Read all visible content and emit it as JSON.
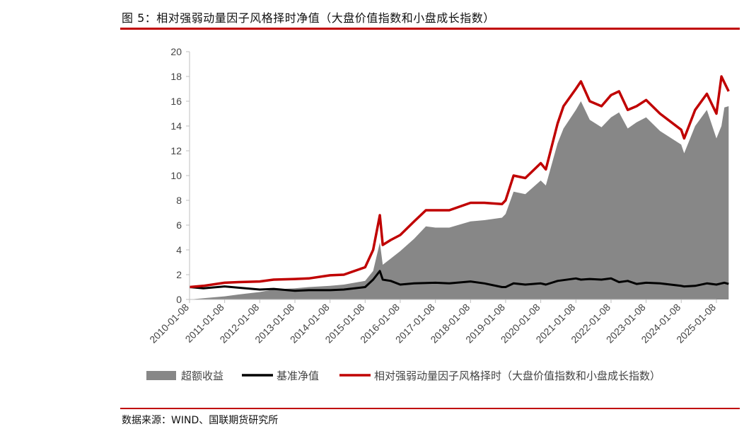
{
  "figure": {
    "title": "图 5：相对强弱动量因子风格择时净值（大盘价值指数和小盘成长指数）",
    "source": "数据来源：WIND、国联期货研究所"
  },
  "colors": {
    "accent_rule": "#c00000",
    "excess_fill": "#878787",
    "benchmark_line": "#000000",
    "strategy_line": "#c00000"
  },
  "chart_data": {
    "type": "area",
    "x_type": "date",
    "ylim": [
      0,
      20
    ],
    "yticks": [
      "0",
      "2",
      "4",
      "6",
      "8",
      "10",
      "12",
      "14",
      "16",
      "18",
      "20"
    ],
    "xticks": [
      "2010-01-08",
      "2011-01-08",
      "2012-01-08",
      "2013-01-08",
      "2014-01-08",
      "2015-01-08",
      "2016-01-08",
      "2017-01-08",
      "2018-01-08",
      "2019-01-08",
      "2020-01-08",
      "2021-01-08",
      "2022-01-08",
      "2023-01-08",
      "2024-01-08",
      "2025-01-08"
    ],
    "grid": false,
    "legend_position": "bottom",
    "series": [
      {
        "name": "超额收益",
        "kind": "area",
        "color": "#878787",
        "points": [
          [
            "2010-01-08",
            0.0
          ],
          [
            "2010-06-01",
            0.1
          ],
          [
            "2011-01-08",
            0.25
          ],
          [
            "2011-06-01",
            0.4
          ],
          [
            "2012-01-08",
            0.6
          ],
          [
            "2012-06-01",
            0.8
          ],
          [
            "2013-01-08",
            0.9
          ],
          [
            "2013-06-01",
            1.0
          ],
          [
            "2014-01-08",
            1.1
          ],
          [
            "2014-06-01",
            1.2
          ],
          [
            "2015-01-08",
            1.5
          ],
          [
            "2015-04-01",
            2.3
          ],
          [
            "2015-06-10",
            4.6
          ],
          [
            "2015-07-10",
            2.8
          ],
          [
            "2015-10-01",
            3.3
          ],
          [
            "2016-01-08",
            3.9
          ],
          [
            "2016-06-01",
            4.9
          ],
          [
            "2016-10-01",
            5.9
          ],
          [
            "2017-01-08",
            5.8
          ],
          [
            "2017-06-01",
            5.8
          ],
          [
            "2018-01-08",
            6.3
          ],
          [
            "2018-06-01",
            6.4
          ],
          [
            "2018-12-01",
            6.6
          ],
          [
            "2019-01-08",
            6.9
          ],
          [
            "2019-04-01",
            8.7
          ],
          [
            "2019-08-01",
            8.5
          ],
          [
            "2020-01-08",
            9.6
          ],
          [
            "2020-03-01",
            9.2
          ],
          [
            "2020-07-01",
            12.6
          ],
          [
            "2020-09-01",
            13.8
          ],
          [
            "2021-01-08",
            15.3
          ],
          [
            "2021-03-01",
            16.0
          ],
          [
            "2021-06-01",
            14.5
          ],
          [
            "2021-10-01",
            13.9
          ],
          [
            "2022-01-08",
            14.7
          ],
          [
            "2022-04-01",
            15.1
          ],
          [
            "2022-07-01",
            13.8
          ],
          [
            "2022-10-01",
            14.3
          ],
          [
            "2023-01-08",
            14.7
          ],
          [
            "2023-06-01",
            13.6
          ],
          [
            "2024-01-08",
            12.5
          ],
          [
            "2024-02-08",
            11.8
          ],
          [
            "2024-06-01",
            14.0
          ],
          [
            "2024-10-01",
            15.3
          ],
          [
            "2025-01-08",
            13.0
          ],
          [
            "2025-03-01",
            14.0
          ],
          [
            "2025-04-01",
            15.5
          ],
          [
            "2025-05-15",
            15.6
          ]
        ]
      },
      {
        "name": "基准净值",
        "kind": "line",
        "color": "#000000",
        "points": [
          [
            "2010-01-08",
            1.0
          ],
          [
            "2010-06-01",
            0.9
          ],
          [
            "2011-01-08",
            1.05
          ],
          [
            "2011-06-01",
            0.95
          ],
          [
            "2012-01-08",
            0.8
          ],
          [
            "2012-06-01",
            0.85
          ],
          [
            "2013-01-08",
            0.7
          ],
          [
            "2013-06-01",
            0.75
          ],
          [
            "2014-01-08",
            0.75
          ],
          [
            "2014-06-01",
            0.8
          ],
          [
            "2015-01-08",
            1.0
          ],
          [
            "2015-04-01",
            1.6
          ],
          [
            "2015-06-10",
            2.3
          ],
          [
            "2015-07-10",
            1.6
          ],
          [
            "2015-10-01",
            1.5
          ],
          [
            "2016-01-08",
            1.2
          ],
          [
            "2016-06-01",
            1.3
          ],
          [
            "2017-01-08",
            1.35
          ],
          [
            "2017-06-01",
            1.3
          ],
          [
            "2018-01-08",
            1.45
          ],
          [
            "2018-06-01",
            1.3
          ],
          [
            "2018-12-01",
            1.0
          ],
          [
            "2019-01-08",
            1.0
          ],
          [
            "2019-04-01",
            1.3
          ],
          [
            "2019-08-01",
            1.2
          ],
          [
            "2020-01-08",
            1.3
          ],
          [
            "2020-03-01",
            1.2
          ],
          [
            "2020-07-01",
            1.5
          ],
          [
            "2021-01-08",
            1.7
          ],
          [
            "2021-03-01",
            1.6
          ],
          [
            "2021-06-01",
            1.65
          ],
          [
            "2021-10-01",
            1.6
          ],
          [
            "2022-01-08",
            1.7
          ],
          [
            "2022-04-01",
            1.4
          ],
          [
            "2022-07-01",
            1.5
          ],
          [
            "2022-10-01",
            1.25
          ],
          [
            "2023-01-08",
            1.35
          ],
          [
            "2023-06-01",
            1.3
          ],
          [
            "2024-01-08",
            1.1
          ],
          [
            "2024-02-08",
            1.05
          ],
          [
            "2024-06-01",
            1.1
          ],
          [
            "2024-10-01",
            1.3
          ],
          [
            "2025-01-08",
            1.2
          ],
          [
            "2025-03-01",
            1.3
          ],
          [
            "2025-04-01",
            1.35
          ],
          [
            "2025-05-15",
            1.25
          ]
        ]
      },
      {
        "name": "相对强弱动量因子风格择时（大盘价值指数和小盘成长指数）",
        "kind": "line",
        "color": "#c00000",
        "points": [
          [
            "2010-01-08",
            1.0
          ],
          [
            "2010-06-01",
            1.1
          ],
          [
            "2011-01-08",
            1.35
          ],
          [
            "2011-06-01",
            1.4
          ],
          [
            "2012-01-08",
            1.45
          ],
          [
            "2012-06-01",
            1.6
          ],
          [
            "2013-01-08",
            1.65
          ],
          [
            "2013-06-01",
            1.7
          ],
          [
            "2014-01-08",
            1.95
          ],
          [
            "2014-06-01",
            2.0
          ],
          [
            "2015-01-08",
            2.6
          ],
          [
            "2015-04-01",
            4.0
          ],
          [
            "2015-06-10",
            6.8
          ],
          [
            "2015-07-10",
            4.4
          ],
          [
            "2015-10-01",
            4.8
          ],
          [
            "2016-01-08",
            5.2
          ],
          [
            "2016-06-01",
            6.3
          ],
          [
            "2016-10-01",
            7.2
          ],
          [
            "2017-01-08",
            7.2
          ],
          [
            "2017-06-01",
            7.2
          ],
          [
            "2018-01-08",
            7.8
          ],
          [
            "2018-06-01",
            7.8
          ],
          [
            "2018-12-01",
            7.7
          ],
          [
            "2019-01-08",
            8.0
          ],
          [
            "2019-04-01",
            10.0
          ],
          [
            "2019-08-01",
            9.8
          ],
          [
            "2020-01-08",
            11.0
          ],
          [
            "2020-03-01",
            10.5
          ],
          [
            "2020-07-01",
            14.2
          ],
          [
            "2020-09-01",
            15.6
          ],
          [
            "2021-01-08",
            17.0
          ],
          [
            "2021-03-01",
            17.6
          ],
          [
            "2021-06-01",
            16.0
          ],
          [
            "2021-10-01",
            15.6
          ],
          [
            "2022-01-08",
            16.5
          ],
          [
            "2022-04-01",
            16.8
          ],
          [
            "2022-07-01",
            15.3
          ],
          [
            "2022-10-01",
            15.6
          ],
          [
            "2023-01-08",
            16.1
          ],
          [
            "2023-06-01",
            15.0
          ],
          [
            "2024-01-08",
            13.7
          ],
          [
            "2024-02-08",
            13.0
          ],
          [
            "2024-06-01",
            15.3
          ],
          [
            "2024-10-01",
            16.6
          ],
          [
            "2025-01-08",
            15.0
          ],
          [
            "2025-03-01",
            18.0
          ],
          [
            "2025-04-01",
            17.5
          ],
          [
            "2025-05-15",
            16.8
          ]
        ]
      }
    ]
  }
}
